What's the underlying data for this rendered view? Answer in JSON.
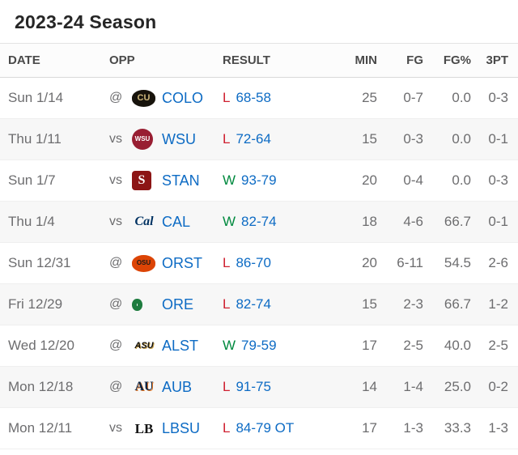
{
  "page": {
    "title": "2023-24 Season"
  },
  "colors": {
    "link_blue": "#0d6bc4",
    "win_green": "#00893e",
    "loss_red": "#cf2030",
    "text_gray": "#6d6d6f",
    "header_text": "#4a4a4a",
    "row_alt_bg": "#f7f7f7"
  },
  "table": {
    "columns": [
      "DATE",
      "OPP",
      "RESULT",
      "MIN",
      "FG",
      "FG%",
      "3PT"
    ],
    "rows": [
      {
        "date": "Sun 1/14",
        "venue": "@",
        "team": "COLO",
        "outcome": "L",
        "score": "68-58",
        "min": "25",
        "fg": "0-7",
        "fg_pct": "0.0",
        "three_pt": "0-3",
        "team_logo": {
          "name": "colorado-buffaloes-logo",
          "shape": "oval",
          "text": "CU",
          "fg": "#cfb87c",
          "bg": "#17130c",
          "size": 11
        }
      },
      {
        "date": "Thu 1/11",
        "venue": "vs",
        "team": "WSU",
        "outcome": "L",
        "score": "72-64",
        "min": "15",
        "fg": "0-3",
        "fg_pct": "0.0",
        "three_pt": "0-1",
        "team_logo": {
          "name": "washington-state-cougars-logo",
          "shape": "circle",
          "text": "WSU",
          "fg": "#ffffff",
          "bg": "#981e32",
          "size": 8
        }
      },
      {
        "date": "Sun 1/7",
        "venue": "vs",
        "team": "STAN",
        "outcome": "W",
        "score": "93-79",
        "min": "20",
        "fg": "0-4",
        "fg_pct": "0.0",
        "three_pt": "0-3",
        "team_logo": {
          "name": "stanford-cardinal-logo",
          "shape": "square",
          "text": "S",
          "fg": "#ffffff",
          "bg": "#8c1515",
          "font": "serif",
          "size": 16
        }
      },
      {
        "date": "Thu 1/4",
        "venue": "vs",
        "team": "CAL",
        "outcome": "W",
        "score": "82-74",
        "min": "18",
        "fg": "4-6",
        "fg_pct": "66.7",
        "three_pt": "0-1",
        "team_logo": {
          "name": "cal-golden-bears-logo",
          "shape": "text",
          "text": "Cal",
          "fg": "#003262",
          "font": "serif",
          "italic": true,
          "size": 16
        }
      },
      {
        "date": "Sun 12/31",
        "venue": "@",
        "team": "ORST",
        "outcome": "L",
        "score": "86-70",
        "min": "20",
        "fg": "6-11",
        "fg_pct": "54.5",
        "three_pt": "2-6",
        "team_logo": {
          "name": "oregon-state-beavers-logo",
          "shape": "oval",
          "text": "OSU",
          "fg": "#1a1a18",
          "bg": "#dc4405",
          "size": 8
        }
      },
      {
        "date": "Fri 12/29",
        "venue": "@",
        "team": "ORE",
        "outcome": "L",
        "score": "82-74",
        "min": "15",
        "fg": "2-3",
        "fg_pct": "66.7",
        "three_pt": "1-2",
        "team_logo": {
          "name": "oregon-ducks-logo",
          "shape": "ring",
          "text": "",
          "fg": "#1e7c3f"
        }
      },
      {
        "date": "Wed 12/20",
        "venue": "@",
        "team": "ALST",
        "outcome": "W",
        "score": "79-59",
        "min": "17",
        "fg": "2-5",
        "fg_pct": "40.0",
        "three_pt": "2-5",
        "team_logo": {
          "name": "alabama-state-hornets-logo",
          "shape": "text",
          "text": "ASU",
          "fg": "#101010",
          "italic": true,
          "size": 11,
          "shadow": "1px 1px 0 #c9a24a"
        }
      },
      {
        "date": "Mon 12/18",
        "venue": "@",
        "team": "AUB",
        "outcome": "L",
        "score": "91-75",
        "min": "14",
        "fg": "1-4",
        "fg_pct": "25.0",
        "three_pt": "0-2",
        "team_logo": {
          "name": "auburn-tigers-logo",
          "shape": "text",
          "text": "AU",
          "fg": "#0c2340",
          "font": "serif",
          "size": 16,
          "shadow": "1px 1px 0 #e87722"
        }
      },
      {
        "date": "Mon 12/11",
        "venue": "vs",
        "team": "LBSU",
        "outcome": "L",
        "score": "84-79 OT",
        "min": "17",
        "fg": "1-3",
        "fg_pct": "33.3",
        "three_pt": "1-3",
        "team_logo": {
          "name": "long-beach-state-logo",
          "shape": "text",
          "text": "LB",
          "fg": "#141414",
          "font": "serif",
          "size": 17
        }
      }
    ]
  }
}
